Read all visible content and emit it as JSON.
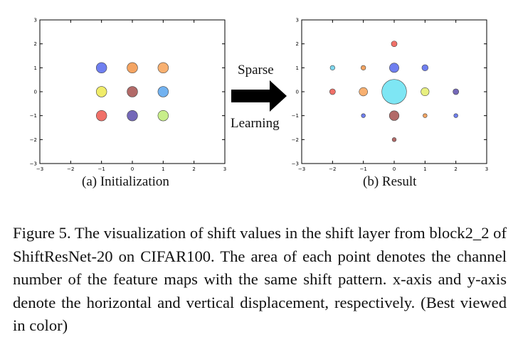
{
  "figure": {
    "arrow_top_label": "Sparse",
    "arrow_bottom_label": "Learning",
    "caption": "Figure 5. The visualization of shift values in the shift layer from block2_2 of ShiftResNet-20 on CIFAR100. The area of each point denotes the channel number of the feature maps with the same shift pattern. x-axis and y-axis denote the horizontal and vertical displacement, respectively. (Best viewed in color)"
  },
  "chart_data": [
    {
      "type": "scatter",
      "subtitle": "(a) Initialization",
      "xlim": [
        -3,
        3
      ],
      "ylim": [
        -3,
        3
      ],
      "xticks": [
        -3,
        -2,
        -1,
        0,
        1,
        2,
        3
      ],
      "yticks": [
        -3,
        -2,
        -1,
        0,
        1,
        2,
        3
      ],
      "grid": false,
      "points": [
        {
          "x": -1,
          "y": 1,
          "size": 1,
          "color": "#6f7ff0"
        },
        {
          "x": 0,
          "y": 1,
          "size": 1,
          "color": "#f4a462"
        },
        {
          "x": 1,
          "y": 1,
          "size": 1,
          "color": "#f8b070"
        },
        {
          "x": -1,
          "y": 0,
          "size": 1,
          "color": "#f0ec6a"
        },
        {
          "x": 0,
          "y": 0,
          "size": 1,
          "color": "#b26a68"
        },
        {
          "x": 1,
          "y": 0,
          "size": 1,
          "color": "#72b2f0"
        },
        {
          "x": -1,
          "y": -1,
          "size": 1,
          "color": "#f07068"
        },
        {
          "x": 0,
          "y": -1,
          "size": 1,
          "color": "#7468b8"
        },
        {
          "x": 1,
          "y": -1,
          "size": 1,
          "color": "#c8ee8a"
        }
      ]
    },
    {
      "type": "scatter",
      "subtitle": "(b) Result",
      "xlim": [
        -3,
        3
      ],
      "ylim": [
        -3,
        3
      ],
      "xticks": [
        -3,
        -2,
        -1,
        0,
        1,
        2,
        3
      ],
      "yticks": [
        -3,
        -2,
        -1,
        0,
        1,
        2,
        3
      ],
      "grid": false,
      "points": [
        {
          "x": 0,
          "y": 2,
          "size": 0.3,
          "color": "#f07068"
        },
        {
          "x": -2,
          "y": 1,
          "size": 0.2,
          "color": "#7ed8f0"
        },
        {
          "x": -1,
          "y": 1,
          "size": 0.2,
          "color": "#f4a462"
        },
        {
          "x": 0,
          "y": 1,
          "size": 0.8,
          "color": "#6f7ff0"
        },
        {
          "x": 1,
          "y": 1,
          "size": 0.35,
          "color": "#6f7ff0"
        },
        {
          "x": -2,
          "y": 0,
          "size": 0.3,
          "color": "#f07068"
        },
        {
          "x": -1,
          "y": 0,
          "size": 0.65,
          "color": "#f8b070"
        },
        {
          "x": 0,
          "y": 0,
          "size": 5.5,
          "color": "#7ee6f4"
        },
        {
          "x": 1,
          "y": 0,
          "size": 0.6,
          "color": "#e8f080"
        },
        {
          "x": 2,
          "y": 0,
          "size": 0.3,
          "color": "#7468b8"
        },
        {
          "x": -1,
          "y": -1,
          "size": 0.15,
          "color": "#6f7ff0"
        },
        {
          "x": 0,
          "y": -1,
          "size": 0.85,
          "color": "#b26a68"
        },
        {
          "x": 1,
          "y": -1,
          "size": 0.15,
          "color": "#f4a462"
        },
        {
          "x": 2,
          "y": -1,
          "size": 0.15,
          "color": "#6f7ff0"
        },
        {
          "x": 0,
          "y": -2,
          "size": 0.15,
          "color": "#b26a68"
        }
      ]
    }
  ]
}
